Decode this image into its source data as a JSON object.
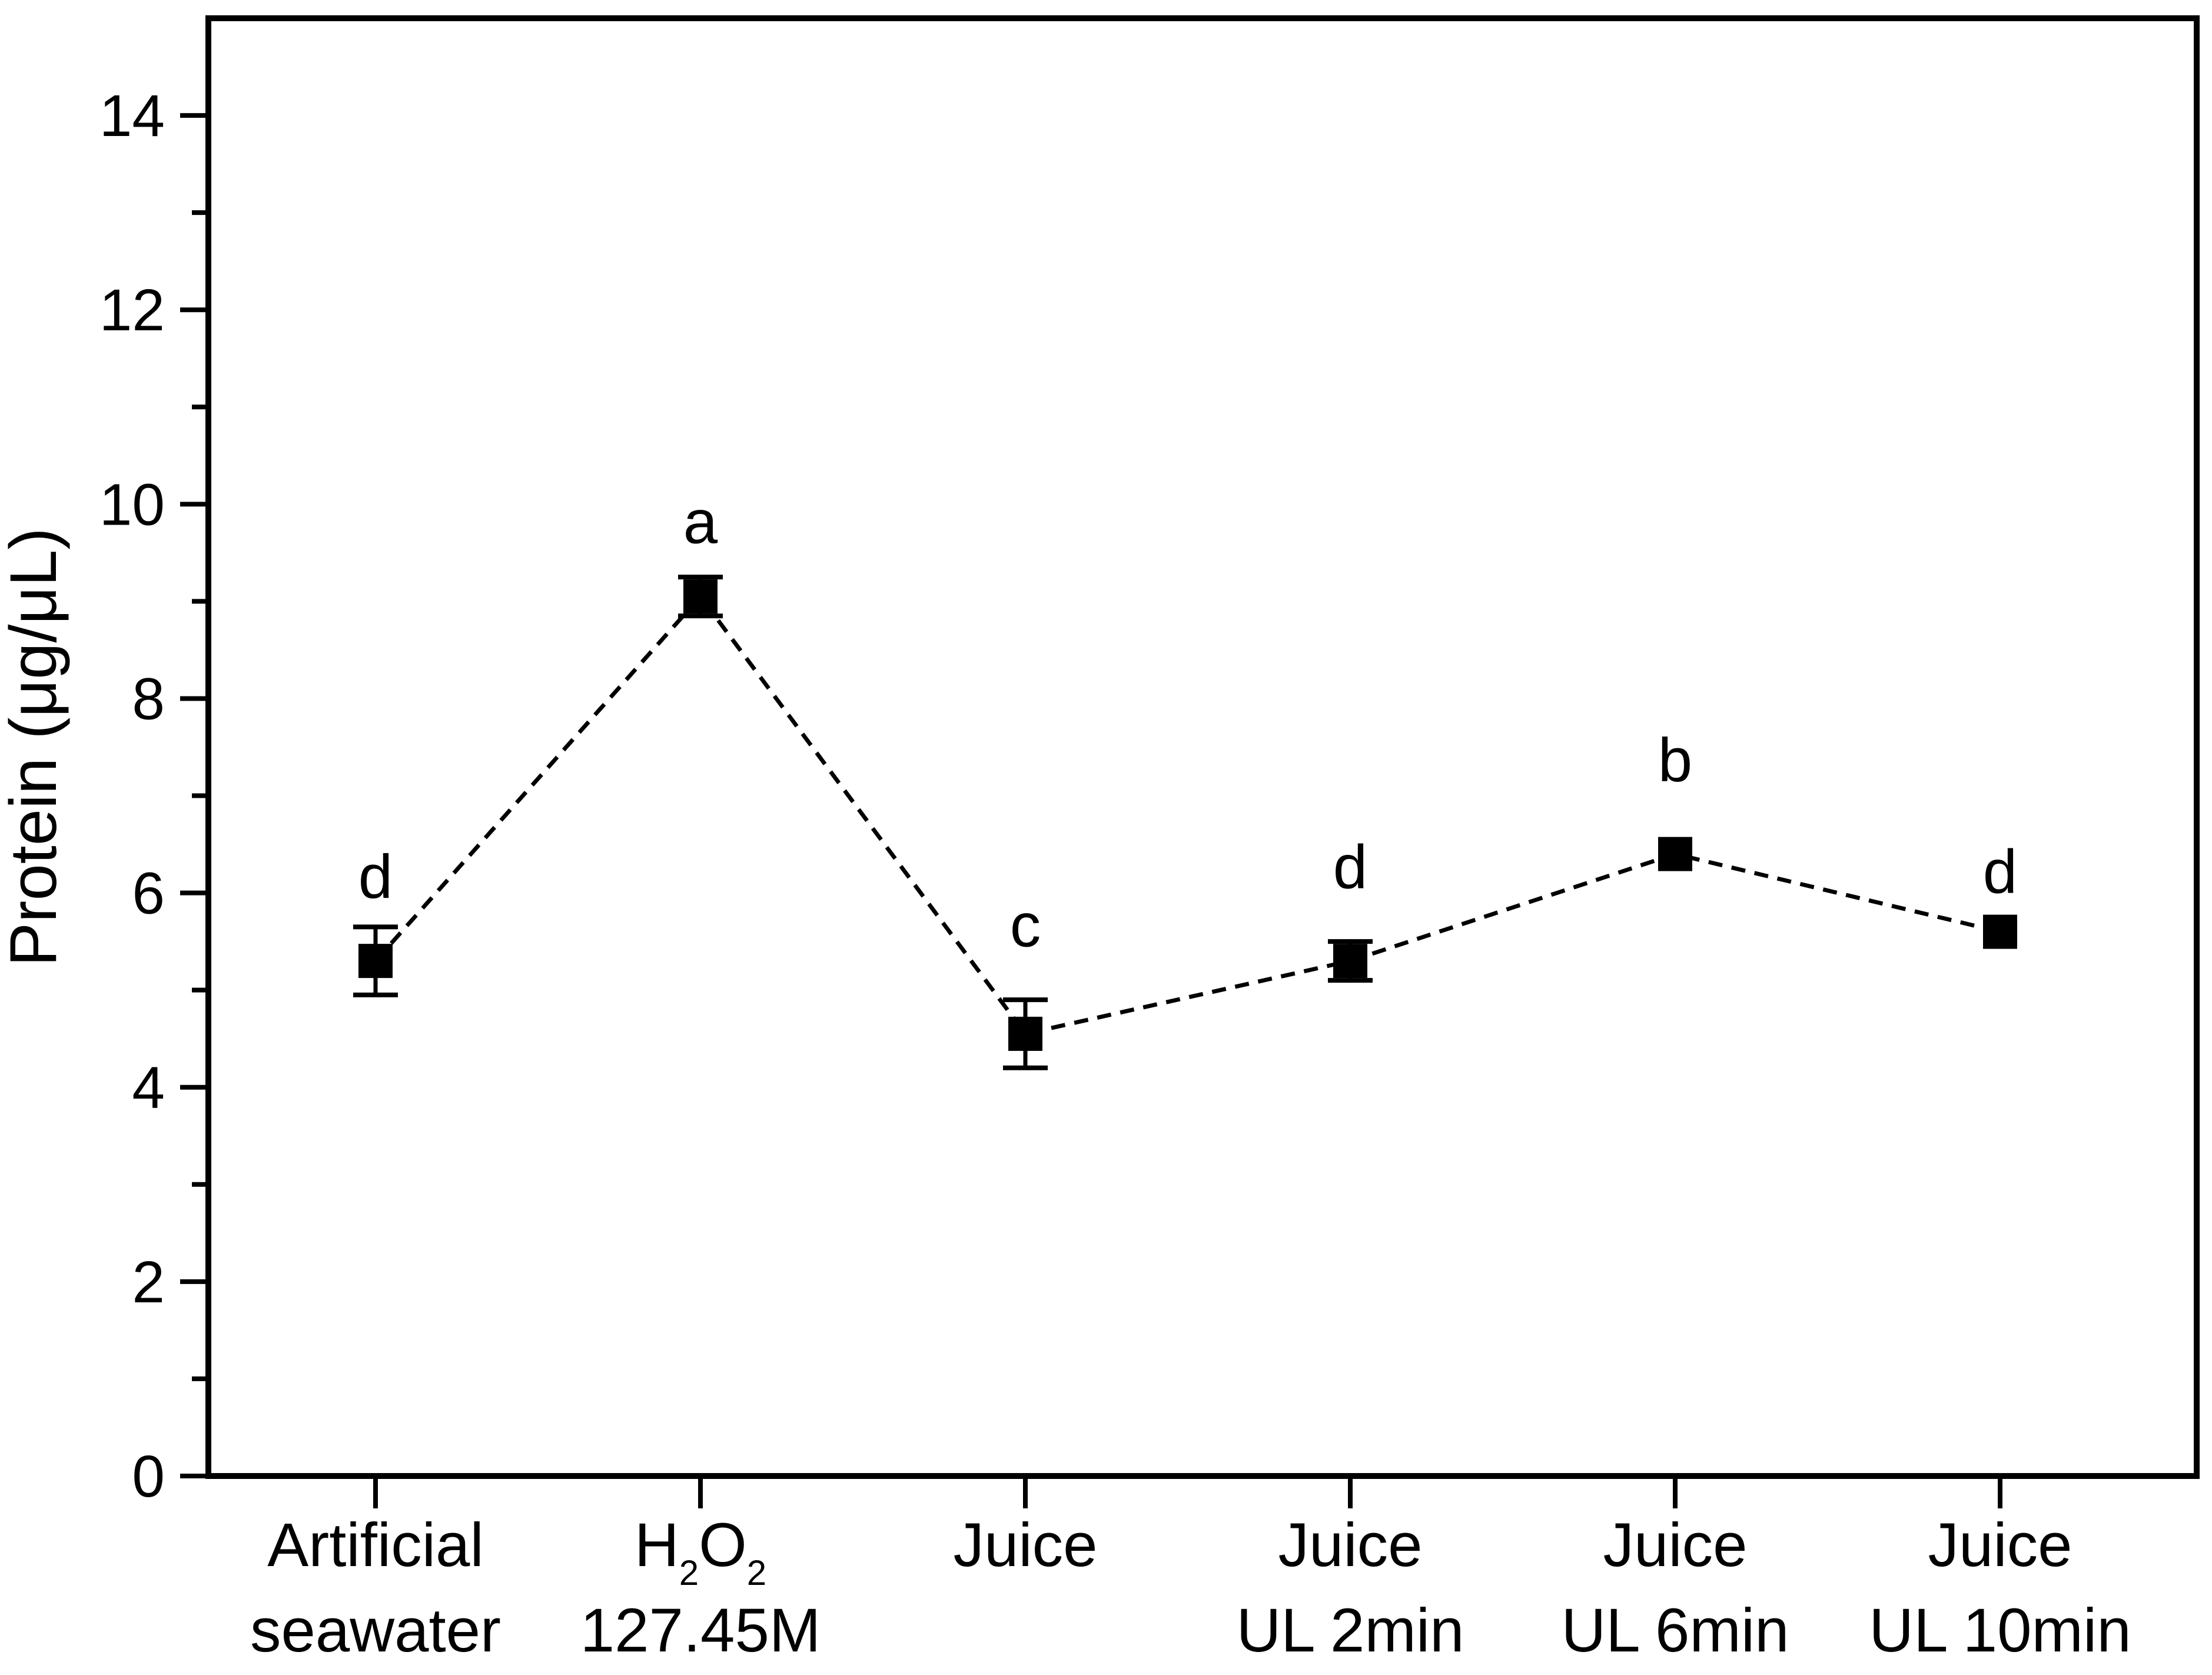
{
  "figure": {
    "background": "#ffffff",
    "axis_color": "#000000",
    "text_color": "#000000"
  },
  "chart_data": {
    "type": "line",
    "title": "",
    "xlabel": "",
    "ylabel": "Protein (μg/μL)",
    "ylim": [
      0,
      15
    ],
    "yticks": {
      "major": [
        0,
        2,
        4,
        6,
        8,
        10,
        12,
        14
      ],
      "minor": [
        1,
        3,
        5,
        7,
        9,
        11,
        13
      ]
    },
    "grid": false,
    "legend": "none",
    "line_style": "dashed",
    "marker": "filled-square",
    "marker_color": "#000000",
    "categories": [
      {
        "label": "Artificial seawater",
        "lines": [
          [
            {
              "t": "Artificial"
            }
          ],
          [
            {
              "t": "seawater"
            }
          ]
        ]
      },
      {
        "label": "H2O2 127.45M",
        "lines": [
          [
            {
              "t": "H"
            },
            {
              "t": "2",
              "sub": true
            },
            {
              "t": "O"
            },
            {
              "t": "2",
              "sub": true
            }
          ],
          [
            {
              "t": "127.45M"
            }
          ]
        ]
      },
      {
        "label": "Juice",
        "lines": [
          [
            {
              "t": "Juice"
            }
          ]
        ]
      },
      {
        "label": "Juice UL 2min",
        "lines": [
          [
            {
              "t": "Juice"
            }
          ],
          [
            {
              "t": "UL 2min"
            }
          ]
        ]
      },
      {
        "label": "Juice UL 6min",
        "lines": [
          [
            {
              "t": "Juice"
            }
          ],
          [
            {
              "t": "UL 6min"
            }
          ]
        ]
      },
      {
        "label": "Juice UL 10min",
        "lines": [
          [
            {
              "t": "Juice"
            }
          ],
          [
            {
              "t": "UL 10min"
            }
          ]
        ]
      }
    ],
    "series": [
      {
        "name": "Protein",
        "values": [
          5.3,
          9.05,
          4.55,
          5.3,
          6.4,
          5.6
        ],
        "errors": [
          0.35,
          0.2,
          0.35,
          0.2,
          0,
          0
        ],
        "significance_letters": [
          "d",
          "a",
          "c",
          "d",
          "b",
          "d"
        ],
        "letter_baseline_y": [
          5.95,
          9.6,
          5.45,
          6.05,
          7.15,
          6.0
        ]
      }
    ]
  }
}
